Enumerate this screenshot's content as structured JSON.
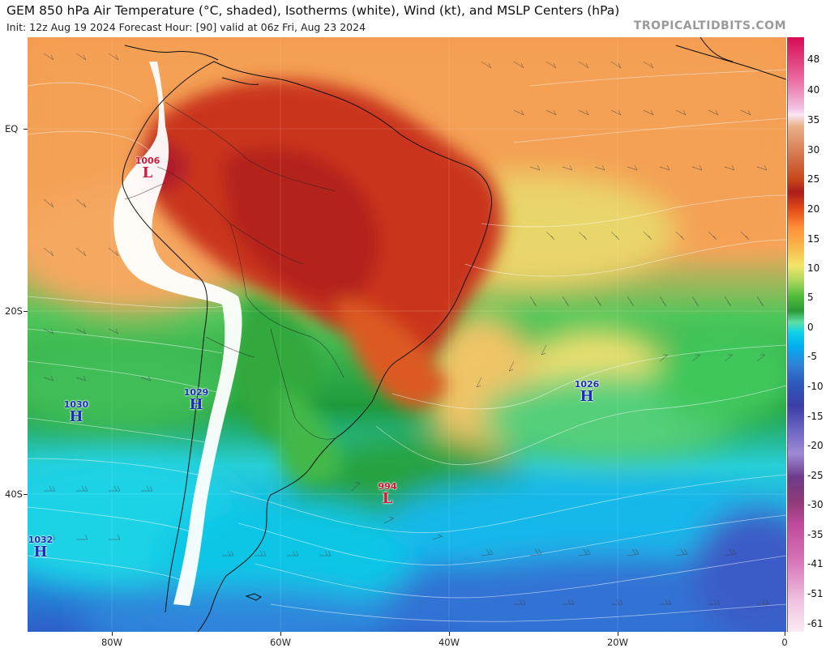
{
  "header": {
    "title": "GEM 850 hPa Air Temperature (°C, shaded), Isotherms (white), Wind (kt), and MSLP Centers (hPa)",
    "subtitle": "Init: 12z Aug 19 2024   Forecast Hour: [90]   valid at 06z Fri, Aug 23 2024",
    "brand": "TROPICALTIDBITS.COM"
  },
  "axes": {
    "lat_labels": [
      "EQ",
      "20S",
      "40S"
    ],
    "lon_labels": [
      "80W",
      "60W",
      "40W",
      "20W",
      "0"
    ]
  },
  "colorbar": {
    "labels": [
      "48",
      "40",
      "35",
      "30",
      "25",
      "20",
      "15",
      "10",
      "5",
      "0",
      "-5",
      "-10",
      "-15",
      "-20",
      "-25",
      "-30",
      "-35",
      "-41",
      "-51",
      "-61"
    ]
  },
  "pressure_centers": [
    {
      "type": "low",
      "symbol": "L",
      "value": "1006"
    },
    {
      "type": "high",
      "symbol": "H",
      "value": "1030"
    },
    {
      "type": "high",
      "symbol": "H",
      "value": "1029"
    },
    {
      "type": "high",
      "symbol": "H",
      "value": "1026"
    },
    {
      "type": "low",
      "symbol": "L",
      "value": "994"
    },
    {
      "type": "high",
      "symbol": "H",
      "value": "1032"
    }
  ],
  "colors": {
    "high": "#1b2fb5",
    "low": "#cc1b3b"
  }
}
